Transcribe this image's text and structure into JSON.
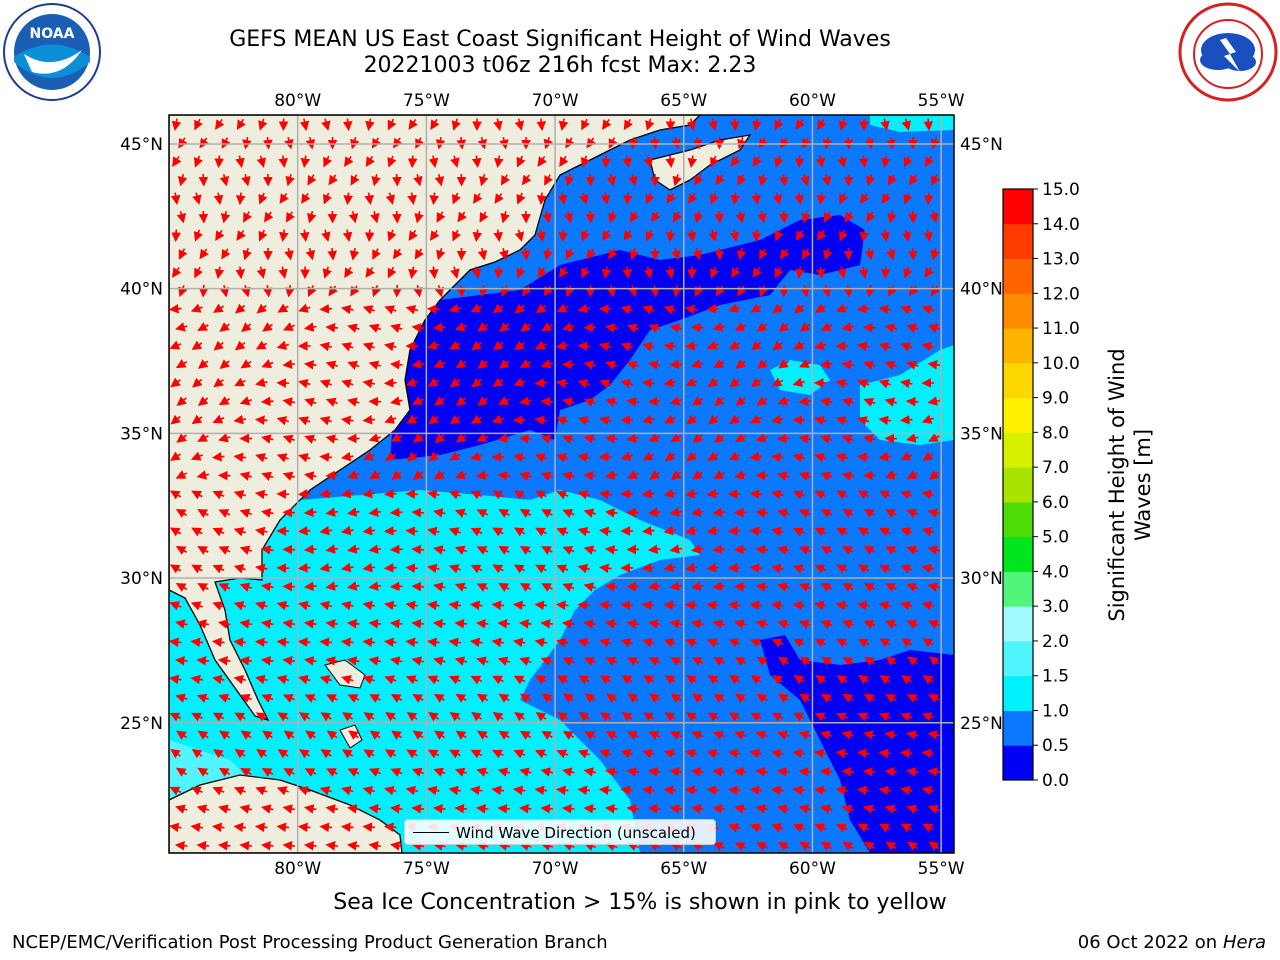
{
  "header": {
    "title_line1": "GEFS MEAN US East Coast Significant Height of Wind Waves",
    "title_line2": "20221003 t06z 216h fcst   Max: 2.23"
  },
  "logos": {
    "left": {
      "name": "noaa-logo",
      "text": "NOAA",
      "ring_text": "NATIONAL OCEANIC AND ATMOSPHERIC ADMINISTRATION · U.S. DEPARTMENT OF COMMERCE"
    },
    "right": {
      "name": "nws-logo",
      "ring_text": "NATIONAL WEATHER SERVICE"
    }
  },
  "map": {
    "lon_labels": [
      "80°W",
      "75°W",
      "70°W",
      "65°W",
      "60°W",
      "55°W"
    ],
    "lat_labels": [
      "45°N",
      "40°N",
      "35°N",
      "30°N",
      "25°N"
    ],
    "lon_values": [
      -80,
      -75,
      -70,
      -65,
      -60,
      -55
    ],
    "lat_values": [
      45,
      40,
      35,
      30,
      25
    ],
    "extent": {
      "lon": [
        -85,
        -54.5
      ],
      "lat": [
        20.5,
        46
      ]
    },
    "arrow_color": "#ff0000",
    "land_color": "#efedde",
    "grid_color": "#b0b0b0"
  },
  "legend": {
    "label": "Wind Wave Direction (unscaled)"
  },
  "colorbar": {
    "label_line1": "Significant Height of Wind",
    "label_line2": "Waves [m]",
    "ticks": [
      "0.0",
      "0.5",
      "1.0",
      "1.5",
      "2.0",
      "3.0",
      "4.0",
      "5.0",
      "6.0",
      "7.0",
      "8.0",
      "9.0",
      "10.0",
      "11.0",
      "12.0",
      "13.0",
      "14.0",
      "15.0"
    ],
    "colors": [
      "#0000f5",
      "#0a78ff",
      "#00f0ff",
      "#50f5ff",
      "#a0faff",
      "#50f57a",
      "#00e41e",
      "#4fdc06",
      "#a8e400",
      "#d6f000",
      "#fff000",
      "#ffd700",
      "#ffb400",
      "#ff8c00",
      "#ff6400",
      "#ff3c00",
      "#ff0000"
    ]
  },
  "footer": {
    "note": "Sea Ice Concentration > 15% is shown in pink to yellow",
    "left": "NCEP/EMC/Verification Post Processing Product Generation Branch",
    "right_date": "06 Oct 2022 on",
    "right_machine": "Hera"
  }
}
